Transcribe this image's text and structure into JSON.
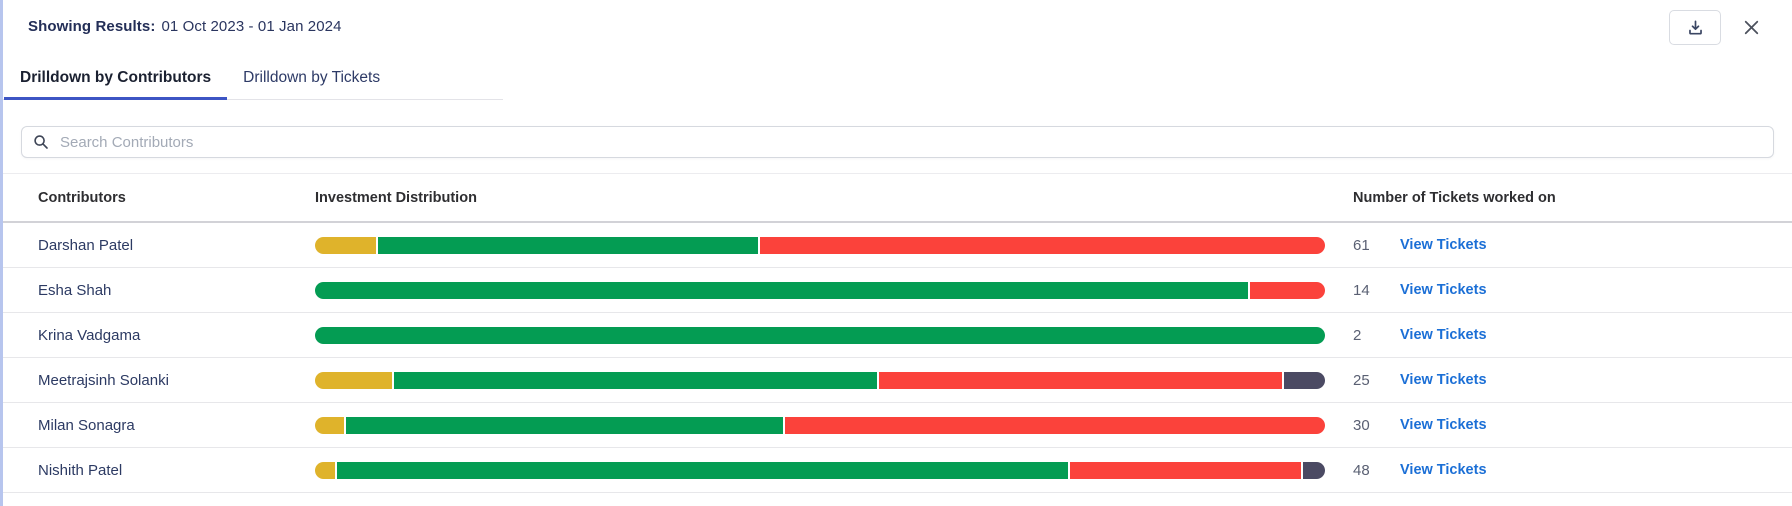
{
  "header": {
    "results_label": "Showing Results:",
    "date_range": "01 Oct 2023 - 01 Jan 2024"
  },
  "tabs": [
    {
      "label": "Drilldown by Contributors",
      "active": true
    },
    {
      "label": "Drilldown by Tickets",
      "active": false
    }
  ],
  "search": {
    "placeholder": "Search Contributors",
    "icon": "search-icon"
  },
  "table": {
    "columns": [
      "Contributors",
      "Investment Distribution",
      "Number of Tickets worked on"
    ],
    "link_label": "View Tickets",
    "rows": [
      {
        "name": "Darshan Patel",
        "tickets": "61",
        "distribution": [
          {
            "status": "yellow",
            "pct": 6.1
          },
          {
            "status": "green",
            "pct": 37.7
          },
          {
            "status": "red",
            "pct": 56.2
          }
        ]
      },
      {
        "name": "Esha Shah",
        "tickets": "14",
        "distribution": [
          {
            "status": "green",
            "pct": 92.6
          },
          {
            "status": "red",
            "pct": 7.4
          }
        ]
      },
      {
        "name": "Krina Vadgama",
        "tickets": "2",
        "distribution": [
          {
            "status": "green",
            "pct": 100
          }
        ]
      },
      {
        "name": "Meetrajsinh Solanki",
        "tickets": "25",
        "distribution": [
          {
            "status": "yellow",
            "pct": 7.7
          },
          {
            "status": "green",
            "pct": 48.1
          },
          {
            "status": "red",
            "pct": 40.1
          },
          {
            "status": "dark",
            "pct": 4.1
          }
        ]
      },
      {
        "name": "Milan Sonagra",
        "tickets": "30",
        "distribution": [
          {
            "status": "yellow",
            "pct": 2.9
          },
          {
            "status": "green",
            "pct": 43.4
          },
          {
            "status": "red",
            "pct": 53.7
          }
        ]
      },
      {
        "name": "Nishith Patel",
        "tickets": "48",
        "distribution": [
          {
            "status": "yellow",
            "pct": 2.0
          },
          {
            "status": "green",
            "pct": 72.8
          },
          {
            "status": "red",
            "pct": 23.0
          },
          {
            "status": "dark",
            "pct": 2.2
          }
        ]
      }
    ]
  },
  "colors": {
    "yellow": "#dfb32b",
    "green": "#049c53",
    "red": "#fb423b",
    "dark": "#4b4a63",
    "link": "#1b6fd6",
    "tab_underline": "#3d55c4"
  }
}
